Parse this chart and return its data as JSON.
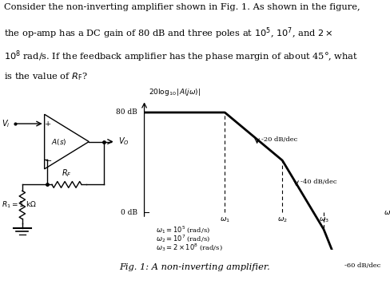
{
  "fig_caption": "Fig. 1: A non-inverting amplifier.",
  "bode_ylabel": "$20\\log_{10}|A(j\\omega)|$",
  "bode_xlabel": "$\\omega$ (log-scale)",
  "slope_labels": [
    "-20 dB/dec",
    "-40 dB/dec",
    "-60 dB/dec"
  ],
  "omega_labels": [
    "$\\omega_1 = 10^5$ (rad/s)",
    "$\\omega_2 = 10^7$ (rad/s)",
    "$\\omega_3 = 2\\times 10^8$ (rad/s)"
  ],
  "background": "#ffffff",
  "text_line1": "Consider the non-inverting amplifier shown in Fig. 1. As shown in the figure,",
  "text_line2": "the op-amp has a DC gain of 80 dB and three poles at $10^5$, $10^7$, and $2 \\times$",
  "text_line3": "$10^8$ rad/s. If the feedback amplifier has the phase margin of about 45°, what",
  "text_line4": "is the value of $R_\\mathrm{F}$?"
}
